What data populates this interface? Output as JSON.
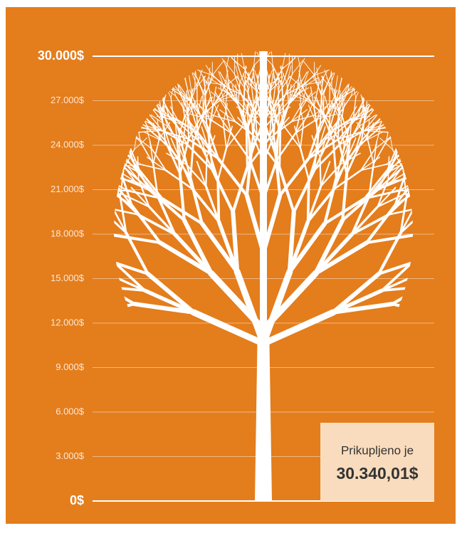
{
  "chart_data": {
    "type": "tree",
    "values": [
      30340.01
    ],
    "value_labels": [
      "30.340,01$"
    ],
    "annotation": "Prikupljeno je",
    "ylim": [
      0,
      30000
    ],
    "yticks": [
      {
        "value": 0,
        "label": "0$"
      },
      {
        "value": 3000,
        "label": "3.000$"
      },
      {
        "value": 6000,
        "label": "6.000$"
      },
      {
        "value": 9000,
        "label": "9.000$"
      },
      {
        "value": 12000,
        "label": "12.000$"
      },
      {
        "value": 15000,
        "label": "15.000$"
      },
      {
        "value": 18000,
        "label": "18.000$"
      },
      {
        "value": 21000,
        "label": "21.000$"
      },
      {
        "value": 24000,
        "label": "24.000$"
      },
      {
        "value": 27000,
        "label": "27.000$"
      },
      {
        "value": 30000,
        "label": "30.000$"
      }
    ],
    "color": "#ffffff",
    "background": "#e47d1c",
    "grid": true
  }
}
